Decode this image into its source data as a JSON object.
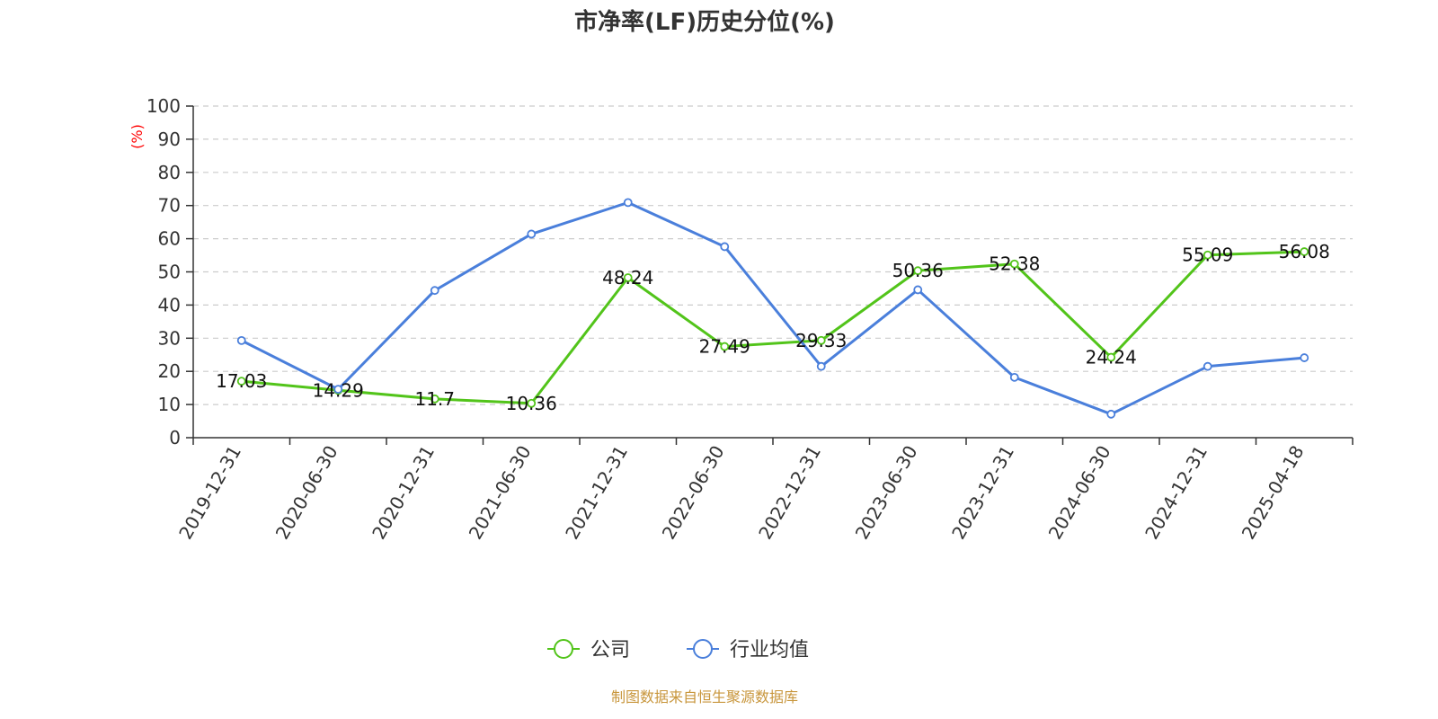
{
  "chart_data": {
    "type": "line",
    "title": "市净率(LF)历史分位(%)",
    "ylabel": "(%)",
    "ylim": [
      0,
      100
    ],
    "yticks": [
      0,
      10,
      20,
      30,
      40,
      50,
      60,
      70,
      80,
      90,
      100
    ],
    "grid": true,
    "legend_position": "bottom-center",
    "categories": [
      "2019-12-31",
      "2020-06-30",
      "2020-12-31",
      "2021-06-30",
      "2021-12-31",
      "2022-06-30",
      "2022-12-31",
      "2023-06-30",
      "2023-12-31",
      "2024-06-30",
      "2024-12-31",
      "2025-04-18"
    ],
    "series": [
      {
        "name": "公司",
        "color": "#52c41a",
        "show_labels": true,
        "values": [
          17.03,
          14.29,
          11.7,
          10.36,
          48.24,
          27.49,
          29.33,
          50.36,
          52.38,
          24.24,
          55.09,
          56.08
        ]
      },
      {
        "name": "行业均值",
        "color": "#4a7fdb",
        "show_labels": false,
        "values": [
          29.3,
          14.6,
          44.4,
          61.4,
          70.9,
          57.6,
          21.5,
          44.6,
          18.2,
          7.1,
          21.5,
          24.1
        ]
      }
    ],
    "source": "制图数据来自恒生聚源数据库"
  },
  "colors": {
    "axis": "#333333",
    "grid": "#cccccc",
    "ylabel": "#ff0000",
    "source": "#c8963c"
  }
}
